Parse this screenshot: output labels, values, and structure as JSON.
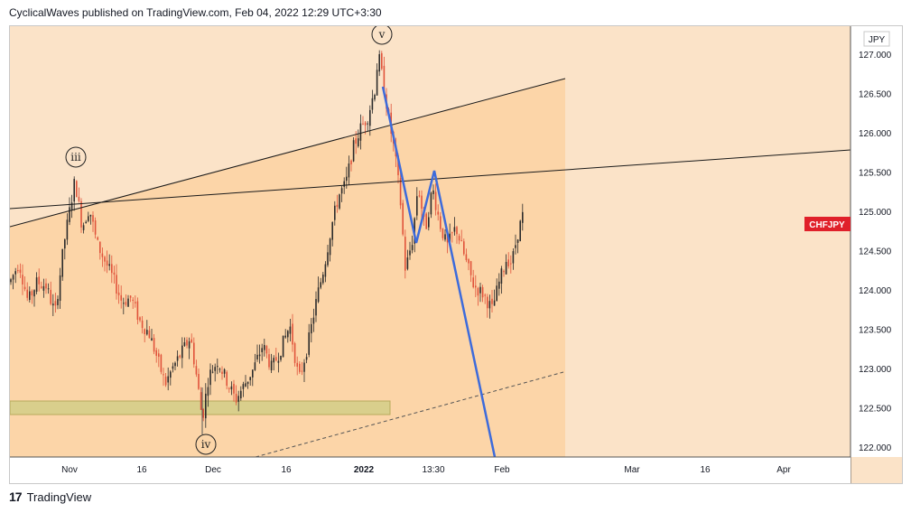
{
  "header": {
    "text": "CyclicalWaves published on TradingView.com, Feb 04, 2022 12:29 UTC+3:30"
  },
  "footer": {
    "brand": "TradingView"
  },
  "colors": {
    "background_zone": "#fbe3c8",
    "trend_zone": "#fcd5a8",
    "support_box": "#d9cf8c",
    "wave_line": "#3d6bdb",
    "candle_up": "#2b2b2b",
    "candle_down": "#e0533a",
    "symbol_badge": "#e0202a"
  },
  "chart_data": {
    "type": "candlestick",
    "symbol": "CHFJPY",
    "currency": "JPY",
    "y_ticks": [
      "127.000",
      "126.500",
      "126.000",
      "125.500",
      "125.000",
      "124.500",
      "124.000",
      "123.500",
      "123.000",
      "122.500",
      "122.000"
    ],
    "y_range": [
      121.85,
      127.45
    ],
    "x_ticks": [
      "Nov",
      "16",
      "Dec",
      "16",
      "2022",
      "13:30",
      "Feb",
      "Mar",
      "16",
      "Apr"
    ],
    "price_path": [
      {
        "x": 0,
        "y": 124.1
      },
      {
        "x": 10,
        "y": 124.35
      },
      {
        "x": 20,
        "y": 123.85
      },
      {
        "x": 30,
        "y": 124.1
      },
      {
        "x": 40,
        "y": 124.05
      },
      {
        "x": 50,
        "y": 123.7
      },
      {
        "x": 60,
        "y": 124.6
      },
      {
        "x": 66,
        "y": 125.0
      },
      {
        "x": 72,
        "y": 125.4
      },
      {
        "x": 80,
        "y": 124.8
      },
      {
        "x": 88,
        "y": 125.05
      },
      {
        "x": 96,
        "y": 124.6
      },
      {
        "x": 104,
        "y": 124.4
      },
      {
        "x": 114,
        "y": 124.15
      },
      {
        "x": 124,
        "y": 123.85
      },
      {
        "x": 134,
        "y": 123.9
      },
      {
        "x": 144,
        "y": 123.6
      },
      {
        "x": 154,
        "y": 123.45
      },
      {
        "x": 164,
        "y": 123.1
      },
      {
        "x": 172,
        "y": 122.8
      },
      {
        "x": 180,
        "y": 123.0
      },
      {
        "x": 190,
        "y": 123.2
      },
      {
        "x": 200,
        "y": 123.4
      },
      {
        "x": 208,
        "y": 122.8
      },
      {
        "x": 213,
        "y": 122.35
      },
      {
        "x": 220,
        "y": 122.9
      },
      {
        "x": 230,
        "y": 123.1
      },
      {
        "x": 240,
        "y": 122.85
      },
      {
        "x": 250,
        "y": 122.6
      },
      {
        "x": 260,
        "y": 122.8
      },
      {
        "x": 270,
        "y": 123.0
      },
      {
        "x": 280,
        "y": 123.3
      },
      {
        "x": 290,
        "y": 123.0
      },
      {
        "x": 300,
        "y": 123.25
      },
      {
        "x": 310,
        "y": 123.55
      },
      {
        "x": 320,
        "y": 122.85
      },
      {
        "x": 330,
        "y": 123.3
      },
      {
        "x": 340,
        "y": 123.9
      },
      {
        "x": 348,
        "y": 124.3
      },
      {
        "x": 356,
        "y": 124.8
      },
      {
        "x": 364,
        "y": 125.2
      },
      {
        "x": 372,
        "y": 125.35
      },
      {
        "x": 380,
        "y": 125.8
      },
      {
        "x": 388,
        "y": 126.05
      },
      {
        "x": 396,
        "y": 126.2
      },
      {
        "x": 404,
        "y": 126.55
      },
      {
        "x": 408,
        "y": 127.0
      },
      {
        "x": 414,
        "y": 126.6
      },
      {
        "x": 420,
        "y": 126.15
      },
      {
        "x": 426,
        "y": 125.75
      },
      {
        "x": 432,
        "y": 125.2
      },
      {
        "x": 438,
        "y": 124.25
      },
      {
        "x": 446,
        "y": 124.65
      },
      {
        "x": 452,
        "y": 125.35
      },
      {
        "x": 460,
        "y": 124.75
      },
      {
        "x": 468,
        "y": 125.3
      },
      {
        "x": 476,
        "y": 124.85
      },
      {
        "x": 484,
        "y": 124.55
      },
      {
        "x": 494,
        "y": 124.8
      },
      {
        "x": 504,
        "y": 124.4
      },
      {
        "x": 514,
        "y": 124.05
      },
      {
        "x": 524,
        "y": 123.95
      },
      {
        "x": 534,
        "y": 123.75
      },
      {
        "x": 542,
        "y": 124.1
      },
      {
        "x": 550,
        "y": 124.4
      },
      {
        "x": 556,
        "y": 124.35
      },
      {
        "x": 562,
        "y": 124.7
      },
      {
        "x": 568,
        "y": 124.95
      }
    ],
    "wave_labels": [
      "iii",
      "iv",
      "v"
    ]
  }
}
